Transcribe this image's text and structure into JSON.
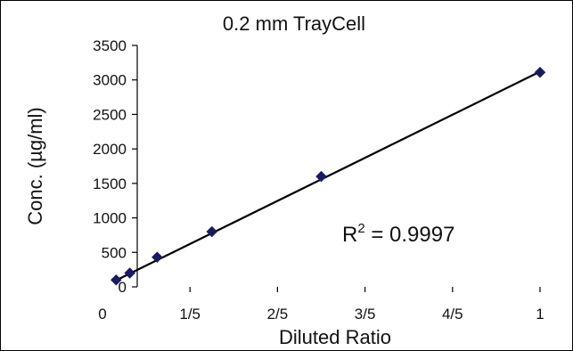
{
  "chart_data": {
    "type": "scatter",
    "title": "0.2 mm TrayCell",
    "xlabel": "Diluted Ratio",
    "ylabel": "Conc. (µg/ml)",
    "xlim": [
      0,
      1
    ],
    "ylim": [
      0,
      3500
    ],
    "x_ticks": [
      {
        "value": 0,
        "label": "0"
      },
      {
        "value": 0.2,
        "label": "1/5"
      },
      {
        "value": 0.4,
        "label": "2/5"
      },
      {
        "value": 0.6,
        "label": "3/5"
      },
      {
        "value": 0.8,
        "label": "4/5"
      },
      {
        "value": 1,
        "label": "1"
      }
    ],
    "y_ticks": [
      0,
      500,
      1000,
      1500,
      2000,
      2500,
      3000,
      3500
    ],
    "grid": false,
    "series": [
      {
        "marker": "diamond",
        "color": "#1a1a5e",
        "points": [
          {
            "x": 0.03125,
            "y": 100
          },
          {
            "x": 0.0625,
            "y": 200
          },
          {
            "x": 0.125,
            "y": 430
          },
          {
            "x": 0.25,
            "y": 800
          },
          {
            "x": 0.5,
            "y": 1600
          },
          {
            "x": 1.0,
            "y": 3110
          }
        ]
      }
    ],
    "trendline": {
      "type": "linear",
      "color": "#000000",
      "from": {
        "x": 0.03125,
        "y": 95
      },
      "to": {
        "x": 1.0,
        "y": 3120
      }
    },
    "annotation": {
      "prefix": "R",
      "superscript": "2",
      "suffix": " = 0.9997"
    }
  }
}
